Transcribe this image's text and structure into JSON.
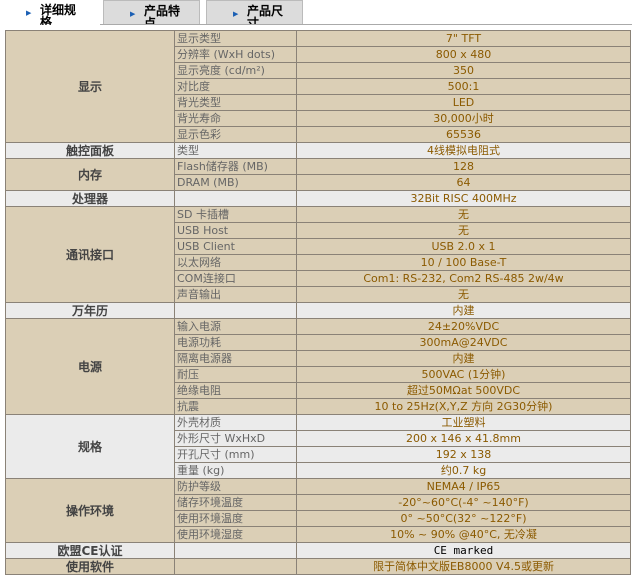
{
  "tabs": [
    {
      "label": "详细规格",
      "active": true
    },
    {
      "label": "产品特点",
      "active": false
    },
    {
      "label": "产品尺寸",
      "active": false
    }
  ],
  "colors": {
    "tan": "#dbcfb6",
    "gray": "#ebebeb",
    "value": "#8b5a00"
  },
  "groups": [
    {
      "name": "显示",
      "shade": "tan",
      "rows": [
        [
          "显示类型",
          "7\" TFT"
        ],
        [
          "分辨率 (WxH dots)",
          "800 x 480"
        ],
        [
          "显示亮度 (cd/m²)",
          "350"
        ],
        [
          "对比度",
          "500:1"
        ],
        [
          "背光类型",
          "LED"
        ],
        [
          "背光寿命",
          "30,000小时"
        ],
        [
          "显示色彩",
          "65536"
        ]
      ]
    },
    {
      "name": "触控面板",
      "shade": "gray",
      "rows": [
        [
          "类型",
          "4线模拟电阻式"
        ]
      ]
    },
    {
      "name": "内存",
      "shade": "tan",
      "rows": [
        [
          "Flash储存器 (MB)",
          "128"
        ],
        [
          "DRAM (MB)",
          "64"
        ]
      ]
    },
    {
      "name": "处理器",
      "shade": "gray",
      "rows": [
        [
          "",
          "32Bit RISC 400MHz"
        ]
      ]
    },
    {
      "name": "通讯接口",
      "shade": "tan",
      "rows": [
        [
          "SD 卡插槽",
          "无"
        ],
        [
          "USB Host",
          "无"
        ],
        [
          "USB Client",
          "USB 2.0 x 1"
        ],
        [
          "以太网络",
          "10 / 100 Base-T"
        ],
        [
          "COM连接口",
          "Com1: RS-232, Com2 RS-485 2w/4w"
        ],
        [
          "声音输出",
          "无"
        ]
      ]
    },
    {
      "name": "万年历",
      "shade": "gray",
      "rows": [
        [
          "",
          "内建"
        ]
      ]
    },
    {
      "name": "电源",
      "shade": "tan",
      "rows": [
        [
          "输入电源",
          "24±20%VDC"
        ],
        [
          "电源功耗",
          "300mA@24VDC"
        ],
        [
          "隔离电源器",
          "内建"
        ],
        [
          "耐压",
          "500VAC (1分钟)"
        ],
        [
          "绝缘电阻",
          "超过50MΩat 500VDC"
        ],
        [
          "抗震",
          "10 to 25Hz(X,Y,Z 方向 2G30分钟)"
        ]
      ]
    },
    {
      "name": "规格",
      "shade": "gray",
      "rows": [
        [
          "外壳材质",
          "工业塑料"
        ],
        [
          "外形尺寸 WxHxD",
          "200 x 146 x 41.8mm"
        ],
        [
          "开孔尺寸 (mm)",
          "192 x 138"
        ],
        [
          "重量 (kg)",
          "约0.7 kg"
        ]
      ]
    },
    {
      "name": "操作环境",
      "shade": "tan",
      "rows": [
        [
          "防护等级",
          "NEMA4 / IP65"
        ],
        [
          "储存环境温度",
          "-20°~60°C(-4° ~140°F)"
        ],
        [
          "使用环境温度",
          "0° ~50°C(32° ~122°F)"
        ],
        [
          "使用环境湿度",
          "10% ~ 90% @40°C, 无冷凝"
        ]
      ]
    },
    {
      "name": "欧盟CE认证",
      "shade": "gray",
      "rows": [
        [
          "",
          "CE marked"
        ]
      ]
    },
    {
      "name": "使用软件",
      "shade": "tan",
      "rows": [
        [
          "",
          "限于简体中文版EB8000 V4.5或更新"
        ]
      ]
    }
  ]
}
